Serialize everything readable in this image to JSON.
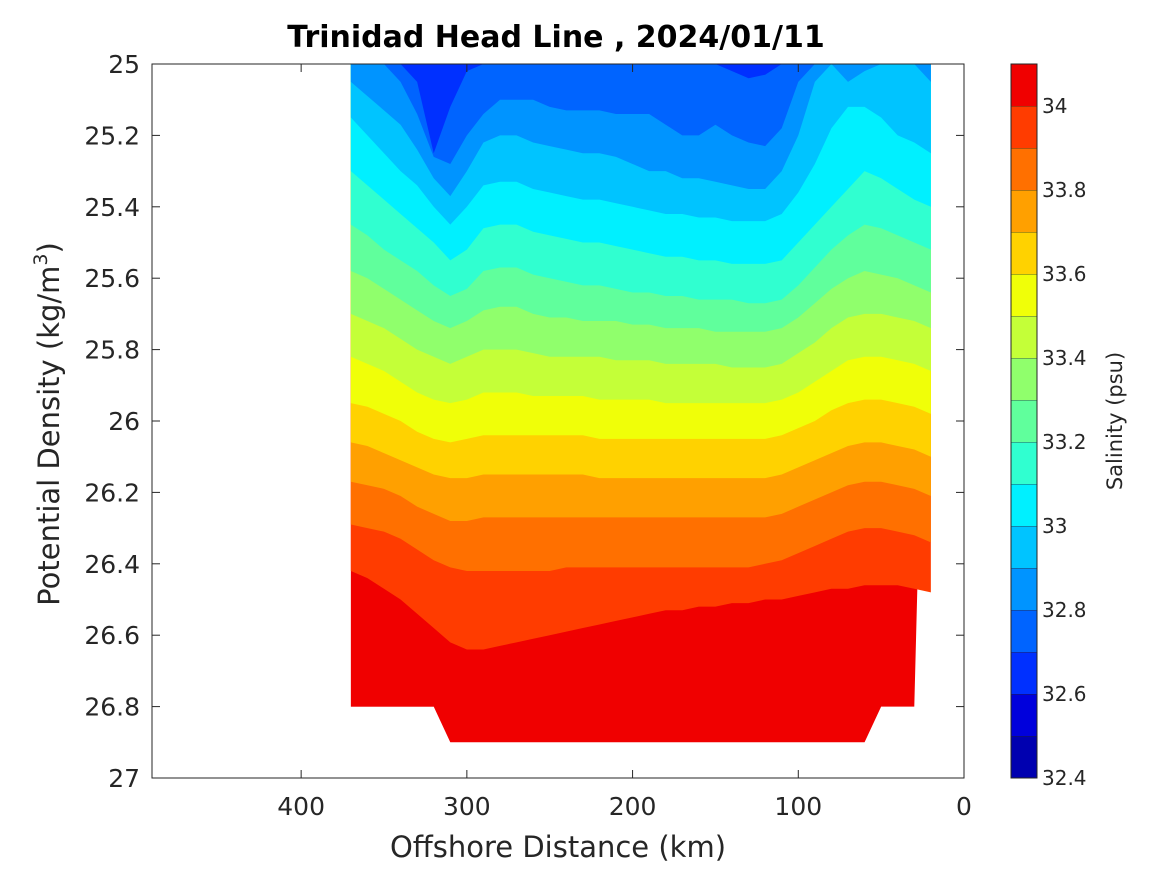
{
  "chart_data": {
    "type": "heatmap",
    "subtype": "filled-contour",
    "title": "Trinidad Head Line , 2024/01/11",
    "xlabel": "Offshore Distance (km)",
    "ylabel": "Potential Density (kg/m",
    "ylabel_sup": "3",
    "ylabel_close": ")",
    "colorbar_label": "Salinity (psu)",
    "xlim": [
      490,
      0
    ],
    "x_reversed": true,
    "ylim": [
      25,
      27
    ],
    "y_reversed": true,
    "xticks": [
      400,
      300,
      200,
      100,
      0
    ],
    "yticks": [
      25,
      25.2,
      25.4,
      25.6,
      25.8,
      26,
      26.2,
      26.4,
      26.6,
      26.8,
      27
    ],
    "xtick_labels": [
      "400",
      "300",
      "200",
      "100",
      "0"
    ],
    "ytick_labels": [
      "25",
      "25.2",
      "25.4",
      "25.6",
      "25.8",
      "26",
      "26.2",
      "26.4",
      "26.6",
      "26.8",
      "27"
    ],
    "colorbar_range": [
      32.4,
      34.1
    ],
    "colorbar_ticks": [
      32.4,
      32.6,
      32.8,
      33,
      33.2,
      33.4,
      33.6,
      33.8,
      34
    ],
    "colorbar_tick_labels": [
      "32.4",
      "32.6",
      "32.8",
      "33",
      "33.2",
      "33.4",
      "33.6",
      "33.8",
      "34"
    ],
    "contour_levels": [
      32.4,
      32.5,
      32.6,
      32.7,
      32.8,
      32.9,
      33.0,
      33.1,
      33.2,
      33.3,
      33.4,
      33.5,
      33.6,
      33.7,
      33.8,
      33.9,
      34.0,
      34.1
    ],
    "colors": [
      "#000080",
      "#0000b0",
      "#0000dc",
      "#0030ff",
      "#0064ff",
      "#0094ff",
      "#00c4ff",
      "#00f0ff",
      "#30ffd0",
      "#60ff9c",
      "#90ff6c",
      "#c4ff38",
      "#f0ff08",
      "#ffd200",
      "#ffa000",
      "#ff7000",
      "#ff3c00",
      "#f00000",
      "#b00000",
      "#800000"
    ],
    "data_extent_x_km": [
      370,
      10
    ],
    "data_extent_density": [
      25,
      26.9
    ],
    "data_bottom_boundary": {
      "distance_km": [
        370,
        320,
        310,
        60,
        50,
        30
      ],
      "density": [
        26.8,
        26.8,
        26.9,
        26.9,
        26.8,
        26.8
      ]
    },
    "isohalines": {
      "distance_km": [
        370,
        360,
        350,
        340,
        330,
        320,
        310,
        300,
        290,
        280,
        270,
        260,
        250,
        240,
        230,
        220,
        210,
        200,
        190,
        180,
        170,
        160,
        150,
        140,
        130,
        120,
        110,
        100,
        90,
        80,
        70,
        60,
        50,
        40,
        30,
        20
      ],
      "series": [
        {
          "salinity": 32.7,
          "density": [
            25,
            25,
            25,
            25,
            25.05,
            25.25,
            25.12,
            25.02,
            25,
            25,
            25,
            25,
            25,
            25,
            25,
            25,
            25,
            25,
            25,
            25,
            25,
            25,
            25,
            25.02,
            25.04,
            25.03,
            25,
            25,
            25,
            25,
            25,
            25,
            25,
            25,
            25,
            25
          ]
        },
        {
          "salinity": 32.8,
          "density": [
            25,
            25,
            25,
            25.05,
            25.14,
            25.26,
            25.28,
            25.2,
            25.14,
            25.1,
            25.1,
            25.1,
            25.12,
            25.13,
            25.13,
            25.13,
            25.14,
            25.14,
            25.14,
            25.17,
            25.2,
            25.2,
            25.17,
            25.2,
            25.22,
            25.23,
            25.18,
            25.05,
            25,
            25,
            25,
            25,
            25,
            25,
            25,
            25
          ]
        },
        {
          "salinity": 32.9,
          "density": [
            25.05,
            25.09,
            25.13,
            25.17,
            25.24,
            25.32,
            25.37,
            25.3,
            25.22,
            25.2,
            25.2,
            25.22,
            25.23,
            25.24,
            25.25,
            25.25,
            25.26,
            25.28,
            25.3,
            25.3,
            25.32,
            25.32,
            25.33,
            25.34,
            25.35,
            25.35,
            25.3,
            25.2,
            25.05,
            25,
            25.05,
            25.02,
            25,
            25,
            25,
            25.05
          ]
        },
        {
          "salinity": 33.0,
          "density": [
            25.15,
            25.2,
            25.25,
            25.3,
            25.34,
            25.4,
            25.45,
            25.4,
            25.34,
            25.33,
            25.33,
            25.35,
            25.36,
            25.37,
            25.38,
            25.38,
            25.39,
            25.4,
            25.41,
            25.42,
            25.42,
            25.43,
            25.43,
            25.44,
            25.44,
            25.44,
            25.42,
            25.36,
            25.28,
            25.18,
            25.12,
            25.12,
            25.15,
            25.2,
            25.22,
            25.25
          ]
        },
        {
          "salinity": 33.1,
          "density": [
            25.3,
            25.34,
            25.38,
            25.42,
            25.46,
            25.5,
            25.55,
            25.52,
            25.46,
            25.45,
            25.45,
            25.47,
            25.48,
            25.49,
            25.5,
            25.5,
            25.51,
            25.52,
            25.53,
            25.54,
            25.54,
            25.55,
            25.55,
            25.56,
            25.56,
            25.56,
            25.55,
            25.5,
            25.45,
            25.4,
            25.35,
            25.3,
            25.32,
            25.35,
            25.38,
            25.4
          ]
        },
        {
          "salinity": 33.2,
          "density": [
            25.45,
            25.48,
            25.52,
            25.55,
            25.58,
            25.62,
            25.65,
            25.63,
            25.58,
            25.57,
            25.57,
            25.59,
            25.6,
            25.61,
            25.62,
            25.62,
            25.63,
            25.64,
            25.64,
            25.65,
            25.65,
            25.66,
            25.66,
            25.66,
            25.67,
            25.67,
            25.66,
            25.62,
            25.57,
            25.52,
            25.48,
            25.45,
            25.46,
            25.48,
            25.5,
            25.52
          ]
        },
        {
          "salinity": 33.3,
          "density": [
            25.58,
            25.6,
            25.63,
            25.66,
            25.69,
            25.72,
            25.74,
            25.72,
            25.69,
            25.68,
            25.68,
            25.7,
            25.71,
            25.71,
            25.72,
            25.72,
            25.72,
            25.73,
            25.73,
            25.74,
            25.74,
            25.74,
            25.75,
            25.75,
            25.75,
            25.75,
            25.74,
            25.71,
            25.67,
            25.63,
            25.6,
            25.58,
            25.59,
            25.6,
            25.62,
            25.64
          ]
        },
        {
          "salinity": 33.4,
          "density": [
            25.7,
            25.72,
            25.74,
            25.77,
            25.8,
            25.82,
            25.84,
            25.82,
            25.8,
            25.8,
            25.8,
            25.81,
            25.82,
            25.82,
            25.82,
            25.82,
            25.83,
            25.83,
            25.83,
            25.84,
            25.84,
            25.84,
            25.84,
            25.85,
            25.85,
            25.85,
            25.84,
            25.81,
            25.78,
            25.74,
            25.71,
            25.7,
            25.7,
            25.71,
            25.72,
            25.74
          ]
        },
        {
          "salinity": 33.5,
          "density": [
            25.82,
            25.84,
            25.86,
            25.89,
            25.92,
            25.94,
            25.95,
            25.94,
            25.92,
            25.92,
            25.92,
            25.93,
            25.93,
            25.93,
            25.93,
            25.94,
            25.94,
            25.94,
            25.94,
            25.95,
            25.95,
            25.95,
            25.95,
            25.95,
            25.95,
            25.95,
            25.94,
            25.92,
            25.89,
            25.86,
            25.83,
            25.82,
            25.82,
            25.83,
            25.84,
            25.86
          ]
        },
        {
          "salinity": 33.6,
          "density": [
            25.95,
            25.96,
            25.98,
            26.0,
            26.03,
            26.05,
            26.06,
            26.05,
            26.04,
            26.04,
            26.04,
            26.04,
            26.04,
            26.04,
            26.04,
            26.05,
            26.05,
            26.05,
            26.05,
            26.05,
            26.05,
            26.05,
            26.05,
            26.05,
            26.05,
            26.05,
            26.04,
            26.02,
            26.0,
            25.97,
            25.95,
            25.94,
            25.94,
            25.95,
            25.96,
            25.98
          ]
        },
        {
          "salinity": 33.7,
          "density": [
            26.06,
            26.07,
            26.09,
            26.11,
            26.13,
            26.15,
            26.16,
            26.16,
            26.15,
            26.15,
            26.15,
            26.15,
            26.15,
            26.15,
            26.15,
            26.16,
            26.16,
            26.16,
            26.16,
            26.16,
            26.16,
            26.16,
            26.16,
            26.16,
            26.16,
            26.16,
            26.15,
            26.13,
            26.11,
            26.09,
            26.07,
            26.06,
            26.06,
            26.07,
            26.08,
            26.1
          ]
        },
        {
          "salinity": 33.8,
          "density": [
            26.17,
            26.18,
            26.19,
            26.21,
            26.24,
            26.26,
            26.28,
            26.28,
            26.27,
            26.27,
            26.27,
            26.27,
            26.27,
            26.27,
            26.27,
            26.27,
            26.27,
            26.27,
            26.27,
            26.27,
            26.27,
            26.27,
            26.27,
            26.27,
            26.27,
            26.27,
            26.26,
            26.24,
            26.22,
            26.2,
            26.18,
            26.17,
            26.17,
            26.18,
            26.19,
            26.21
          ]
        },
        {
          "salinity": 33.9,
          "density": [
            26.29,
            26.3,
            26.31,
            26.33,
            26.36,
            26.39,
            26.41,
            26.42,
            26.42,
            26.42,
            26.42,
            26.42,
            26.42,
            26.41,
            26.41,
            26.41,
            26.41,
            26.41,
            26.41,
            26.41,
            26.41,
            26.41,
            26.41,
            26.41,
            26.41,
            26.4,
            26.39,
            26.37,
            26.35,
            26.33,
            26.31,
            26.3,
            26.3,
            26.31,
            26.32,
            26.34
          ]
        },
        {
          "salinity": 34.0,
          "density": [
            26.42,
            26.44,
            26.47,
            26.5,
            26.54,
            26.58,
            26.62,
            26.64,
            26.64,
            26.63,
            26.62,
            26.61,
            26.6,
            26.59,
            26.58,
            26.57,
            26.56,
            26.55,
            26.54,
            26.53,
            26.53,
            26.52,
            26.52,
            26.51,
            26.51,
            26.5,
            26.5,
            26.49,
            26.48,
            26.47,
            26.47,
            26.46,
            26.46,
            26.46,
            26.47,
            26.48
          ]
        }
      ]
    },
    "max_salinity_patch": {
      "salinity": 34.1,
      "distance_km": [
        370,
        340,
        320
      ],
      "density": [
        26.8,
        26.7,
        26.8
      ]
    }
  }
}
